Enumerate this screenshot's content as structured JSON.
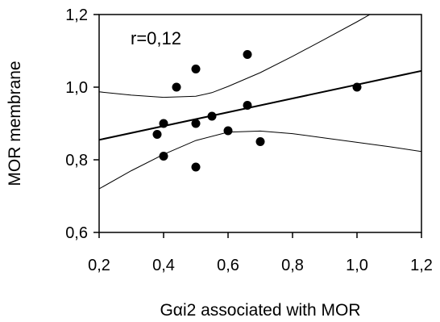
{
  "chart_data": {
    "type": "scatter",
    "xlabel": "Gαi2 associated with MOR",
    "ylabel": "MOR membrane",
    "xlim": [
      0.2,
      1.2
    ],
    "ylim": [
      0.6,
      1.2
    ],
    "x_ticks": [
      0.2,
      0.4,
      0.6,
      0.8,
      1.0,
      1.2
    ],
    "x_tick_labels": [
      "0,2",
      "0,4",
      "0,6",
      "0,8",
      "1,0",
      "1,2"
    ],
    "y_ticks": [
      0.6,
      0.8,
      1.0,
      1.2
    ],
    "y_tick_labels": [
      "0,6",
      "0,8",
      "1,0",
      "1,2"
    ],
    "annotation": "r=0,12",
    "grid": false,
    "points": [
      {
        "x": 0.38,
        "y": 0.87
      },
      {
        "x": 0.4,
        "y": 0.9
      },
      {
        "x": 0.4,
        "y": 0.81
      },
      {
        "x": 0.44,
        "y": 1.0
      },
      {
        "x": 0.5,
        "y": 1.05
      },
      {
        "x": 0.5,
        "y": 0.9
      },
      {
        "x": 0.5,
        "y": 0.78
      },
      {
        "x": 0.55,
        "y": 0.92
      },
      {
        "x": 0.6,
        "y": 0.88
      },
      {
        "x": 0.66,
        "y": 1.09
      },
      {
        "x": 0.66,
        "y": 0.95
      },
      {
        "x": 0.7,
        "y": 0.85
      },
      {
        "x": 1.0,
        "y": 1.0
      }
    ],
    "regression_line": [
      {
        "x": 0.2,
        "y": 0.855
      },
      {
        "x": 1.2,
        "y": 1.045
      }
    ],
    "confidence_upper": [
      {
        "x": 0.2,
        "y": 0.987
      },
      {
        "x": 0.3,
        "y": 0.978
      },
      {
        "x": 0.4,
        "y": 0.972
      },
      {
        "x": 0.5,
        "y": 0.975
      },
      {
        "x": 0.55,
        "y": 0.985
      },
      {
        "x": 0.6,
        "y": 1.002
      },
      {
        "x": 0.7,
        "y": 1.04
      },
      {
        "x": 0.8,
        "y": 1.085
      },
      {
        "x": 0.9,
        "y": 1.132
      },
      {
        "x": 1.0,
        "y": 1.18
      },
      {
        "x": 1.05,
        "y": 1.205
      }
    ],
    "confidence_lower": [
      {
        "x": 0.2,
        "y": 0.72
      },
      {
        "x": 0.3,
        "y": 0.77
      },
      {
        "x": 0.4,
        "y": 0.815
      },
      {
        "x": 0.5,
        "y": 0.853
      },
      {
        "x": 0.6,
        "y": 0.876
      },
      {
        "x": 0.7,
        "y": 0.879
      },
      {
        "x": 0.8,
        "y": 0.872
      },
      {
        "x": 0.9,
        "y": 0.86
      },
      {
        "x": 1.0,
        "y": 0.848
      },
      {
        "x": 1.1,
        "y": 0.836
      },
      {
        "x": 1.2,
        "y": 0.823
      }
    ]
  }
}
